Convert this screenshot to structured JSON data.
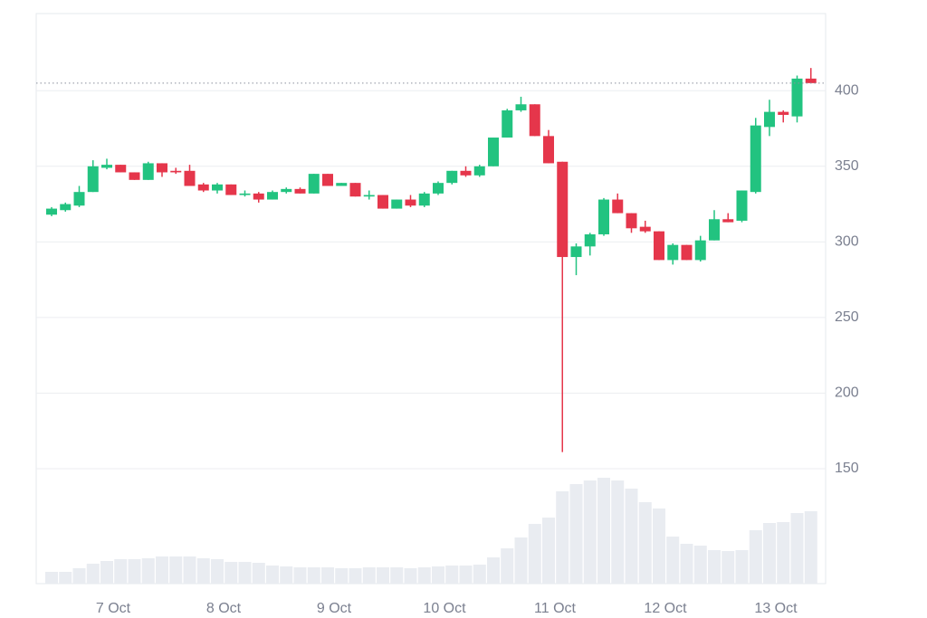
{
  "chart_data": {
    "type": "candlestick",
    "categories": [
      null,
      null,
      null,
      null,
      "7 Oct",
      null,
      null,
      null,
      null,
      null,
      null,
      null,
      "8 Oct",
      null,
      null,
      null,
      null,
      null,
      null,
      null,
      "9 Oct",
      null,
      null,
      null,
      null,
      null,
      null,
      null,
      "10 Oct",
      null,
      null,
      null,
      null,
      null,
      null,
      null,
      "11 Oct",
      null,
      null,
      null,
      null,
      null,
      null,
      null,
      "12 Oct",
      null,
      null,
      null,
      null,
      null,
      null,
      null,
      "13 Oct",
      null,
      null,
      null
    ],
    "open": [
      318,
      321,
      324,
      333,
      349,
      351,
      346,
      341,
      352,
      347,
      347,
      338,
      334,
      338,
      331,
      332,
      328,
      333,
      335,
      332,
      345,
      337,
      339,
      330,
      331,
      322,
      328,
      324,
      332,
      339,
      347,
      344,
      350,
      369,
      387,
      391,
      370,
      353,
      290,
      297,
      305,
      328,
      319,
      310,
      307,
      288,
      298,
      288,
      301,
      315,
      314,
      333,
      376,
      386,
      383,
      408
    ],
    "high": [
      323,
      326,
      337,
      354,
      355,
      351,
      346,
      353,
      352,
      349,
      351,
      339,
      339,
      338,
      334,
      333,
      334,
      336,
      336,
      345,
      345,
      339,
      339,
      334,
      331,
      328,
      331,
      333,
      340,
      347,
      350,
      351,
      369,
      388,
      396,
      391,
      374,
      353,
      299,
      306,
      329,
      332,
      319,
      314,
      307,
      299,
      298,
      304,
      321,
      319,
      334,
      382,
      394,
      387,
      410,
      415
    ],
    "low": [
      317,
      320,
      323,
      333,
      348,
      346,
      341,
      341,
      343,
      345,
      337,
      333,
      332,
      331,
      330,
      326,
      328,
      332,
      332,
      332,
      337,
      337,
      330,
      328,
      322,
      322,
      323,
      323,
      331,
      338,
      343,
      343,
      350,
      369,
      386,
      370,
      352,
      161,
      278,
      291,
      304,
      319,
      306,
      306,
      288,
      285,
      288,
      287,
      301,
      313,
      313,
      332,
      370,
      379,
      379,
      405
    ],
    "close": [
      322,
      325,
      333,
      350,
      351,
      346,
      341,
      352,
      346,
      346,
      337,
      334,
      338,
      331,
      332,
      328,
      333,
      335,
      332,
      345,
      337,
      339,
      330,
      331,
      322,
      328,
      324,
      332,
      339,
      347,
      344,
      350,
      369,
      387,
      391,
      370,
      352,
      290,
      297,
      305,
      328,
      319,
      309,
      307,
      288,
      298,
      288,
      301,
      315,
      313,
      334,
      377,
      386,
      384,
      408,
      405
    ],
    "volume": [
      13,
      13,
      17,
      22,
      25,
      27,
      27,
      28,
      30,
      30,
      30,
      28,
      27,
      24,
      24,
      23,
      20,
      19,
      18,
      18,
      18,
      17,
      17,
      18,
      18,
      18,
      17,
      18,
      19,
      20,
      20,
      21,
      29,
      39,
      51,
      66,
      73,
      102,
      110,
      114,
      117,
      114,
      105,
      90,
      83,
      52,
      44,
      42,
      37,
      36,
      37,
      59,
      67,
      68,
      78,
      80
    ],
    "up_color": "#22c380",
    "down_color": "#e5364b",
    "volume_color": "#e9ecf1",
    "ylim": [
      74,
      451
    ],
    "yticks": [
      150,
      200,
      250,
      300,
      350,
      400
    ],
    "grid": true,
    "last_price_line": true
  }
}
